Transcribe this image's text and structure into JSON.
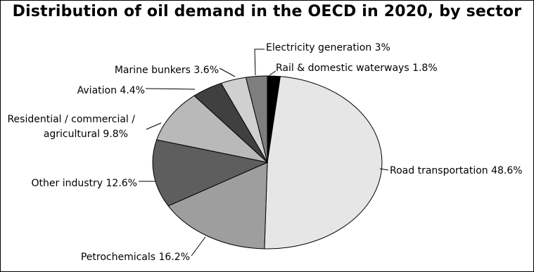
{
  "chart_data": {
    "type": "pie",
    "title": "Distribution of oil demand in the OECD in 2020, by sector",
    "unit": "%",
    "slices": [
      {
        "label": "Rail & domestic waterways",
        "value": 1.8,
        "display": "Rail & domestic waterways 1.8%",
        "color": "#000000"
      },
      {
        "label": "Road transportation",
        "value": 48.6,
        "display": "Road transportation 48.6%",
        "color": "#e6e6e6"
      },
      {
        "label": "Petrochemicals",
        "value": 16.2,
        "display": "Petrochemicals 16.2%",
        "color": "#9e9e9e"
      },
      {
        "label": "Other industry",
        "value": 12.6,
        "display": "Other industry 12.6%",
        "color": "#5e5e5e"
      },
      {
        "label": "Residential / commercial / agricultural",
        "value": 9.8,
        "display_lines": [
          "Residential / commercial /",
          "agricultural 9.8%"
        ],
        "color": "#b9b9b9"
      },
      {
        "label": "Aviation",
        "value": 4.4,
        "display": "Aviation 4.4%",
        "color": "#404040"
      },
      {
        "label": "Marine bunkers",
        "value": 3.6,
        "display": "Marine bunkers 3.6%",
        "color": "#d0d0d0"
      },
      {
        "label": "Electricity generation",
        "value": 3.0,
        "display": "Electricity generation 3%",
        "color": "#7e7e7e"
      }
    ],
    "legend": "none",
    "labels": "outside with leader lines"
  }
}
